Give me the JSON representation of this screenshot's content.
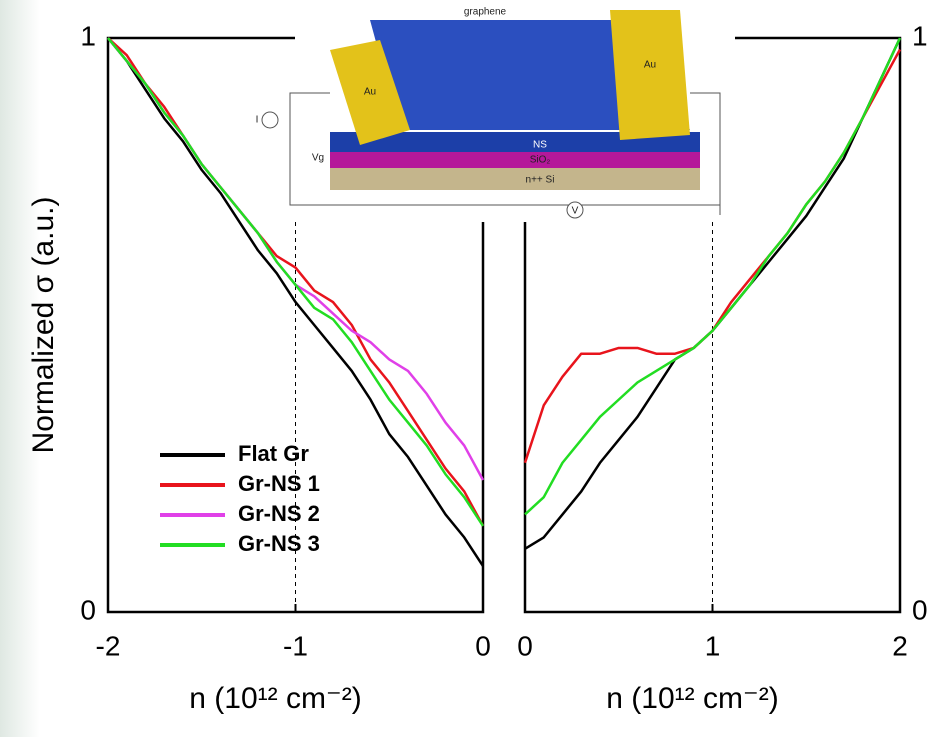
{
  "chart_data": [
    {
      "type": "line",
      "ylabel": "Normalized σ (a.u.)",
      "xlabel": "n (10¹² cm⁻²)",
      "xlim": [
        -2,
        0
      ],
      "ylim": [
        0,
        1
      ],
      "xticks": [
        -2,
        -1,
        0
      ],
      "yticks": [
        0,
        1
      ],
      "vlines": [
        -1
      ],
      "x": [
        -2,
        -1.9,
        -1.8,
        -1.7,
        -1.6,
        -1.5,
        -1.4,
        -1.3,
        -1.2,
        -1.1,
        -1,
        -0.9,
        -0.8,
        -0.7,
        -0.6,
        -0.5,
        -0.4,
        -0.3,
        -0.2,
        -0.1,
        0
      ],
      "series": [
        {
          "name": "Flat Gr",
          "color": "#000000",
          "values": [
            1.0,
            0.96,
            0.91,
            0.86,
            0.82,
            0.77,
            0.73,
            0.68,
            0.63,
            0.59,
            0.54,
            0.5,
            0.46,
            0.42,
            0.37,
            0.31,
            0.27,
            0.22,
            0.17,
            0.13,
            0.08
          ]
        },
        {
          "name": "Gr-NS 1",
          "color": "#e8141c",
          "values": [
            1.0,
            0.97,
            0.92,
            0.88,
            0.83,
            0.78,
            0.74,
            0.7,
            0.66,
            0.62,
            0.6,
            0.56,
            0.54,
            0.5,
            0.44,
            0.4,
            0.35,
            0.3,
            0.25,
            0.21,
            0.15
          ]
        },
        {
          "name": "Gr-NS 2",
          "color": "#e040e8",
          "values": [
            1.0,
            0.96,
            0.92,
            0.87,
            0.83,
            0.78,
            0.74,
            0.7,
            0.66,
            0.61,
            0.57,
            0.55,
            0.52,
            0.49,
            0.47,
            0.44,
            0.42,
            0.38,
            0.33,
            0.29,
            0.23
          ]
        },
        {
          "name": "Gr-NS 3",
          "color": "#22dd22",
          "values": [
            1.0,
            0.96,
            0.92,
            0.87,
            0.83,
            0.78,
            0.74,
            0.7,
            0.66,
            0.61,
            0.57,
            0.53,
            0.51,
            0.47,
            0.42,
            0.37,
            0.33,
            0.29,
            0.24,
            0.2,
            0.15
          ]
        }
      ]
    },
    {
      "type": "line",
      "xlabel": "n (10¹² cm⁻²)",
      "xlim": [
        0,
        2
      ],
      "ylim": [
        0,
        1
      ],
      "xticks": [
        0,
        1,
        2
      ],
      "yticks": [
        0,
        1
      ],
      "vlines": [
        1
      ],
      "x": [
        0,
        0.1,
        0.2,
        0.3,
        0.4,
        0.5,
        0.6,
        0.7,
        0.8,
        0.9,
        1,
        1.1,
        1.2,
        1.3,
        1.4,
        1.5,
        1.6,
        1.7,
        1.8,
        1.9,
        2
      ],
      "series": [
        {
          "color": "#000000",
          "values": [
            0.11,
            0.13,
            0.17,
            0.21,
            0.26,
            0.3,
            0.34,
            0.39,
            0.44,
            0.46,
            0.49,
            0.53,
            0.57,
            0.61,
            0.65,
            0.69,
            0.74,
            0.79,
            0.86,
            0.93,
            1.0
          ]
        },
        {
          "color": "#e8141c",
          "values": [
            0.26,
            0.36,
            0.41,
            0.45,
            0.45,
            0.46,
            0.46,
            0.45,
            0.45,
            0.46,
            0.49,
            0.54,
            0.58,
            0.62,
            0.66,
            0.71,
            0.75,
            0.8,
            0.86,
            0.92,
            0.98
          ]
        },
        {
          "color": "#22dd22",
          "values": [
            0.17,
            0.2,
            0.26,
            0.3,
            0.34,
            0.37,
            0.4,
            0.42,
            0.44,
            0.46,
            0.49,
            0.53,
            0.57,
            0.62,
            0.66,
            0.71,
            0.75,
            0.8,
            0.86,
            0.93,
            1.0
          ]
        }
      ]
    }
  ],
  "inset": {
    "labels": [
      "graphene",
      "Au",
      "Au",
      "NS",
      "SiO₂",
      "n++ Si",
      "I",
      "Vg",
      "V"
    ]
  }
}
